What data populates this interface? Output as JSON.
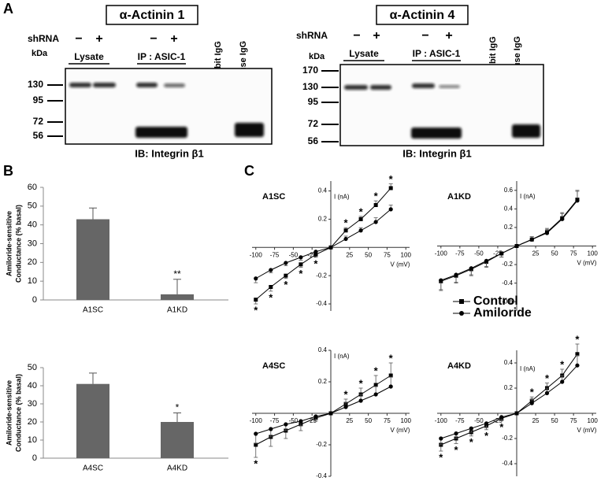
{
  "panel_labels": [
    "A",
    "B",
    "C"
  ],
  "blots": [
    {
      "title": "α-Actinin 1",
      "shrna_label": "shRNA",
      "lane_signs": [
        "−",
        "+",
        "−",
        "+"
      ],
      "kda_label": "kDa",
      "groups": [
        "Lysate",
        "IP : ASIC-1"
      ],
      "controls": [
        "Rabbit IgG",
        "Mouse IgG"
      ],
      "markers": [
        130,
        95,
        72,
        56
      ],
      "ib_label": "IB: Integrin β1"
    },
    {
      "title": "α-Actinin 4",
      "shrna_label": "shRNA",
      "lane_signs": [
        "−",
        "+",
        "−",
        "+"
      ],
      "kda_label": "kDa",
      "groups": [
        "Lysate",
        "IP : ASIC-1"
      ],
      "controls": [
        "Rabbit IgG",
        "Mouse IgG"
      ],
      "markers": [
        170,
        130,
        95,
        72,
        56
      ],
      "ib_label": "IB: Integrin β1"
    }
  ],
  "chart_data": [
    {
      "type": "bar",
      "ylabel": [
        "Amiloride-sensitive",
        "Conductance (% basal)"
      ],
      "categories": [
        "A1SC",
        "A1KD"
      ],
      "values": [
        43,
        3
      ],
      "errors": [
        6,
        8
      ],
      "significance": [
        null,
        "**"
      ],
      "color": "#666666",
      "ylim": [
        0,
        60
      ],
      "yticks": [
        0,
        10,
        20,
        30,
        40,
        50,
        60
      ]
    },
    {
      "type": "bar",
      "ylabel": [
        "Amiloride-sensitive",
        "Conductance (% basal)"
      ],
      "categories": [
        "A4SC",
        "A4KD"
      ],
      "values": [
        41,
        20
      ],
      "errors": [
        6,
        5
      ],
      "significance": [
        null,
        "*"
      ],
      "color": "#666666",
      "ylim": [
        0,
        50
      ],
      "yticks": [
        0,
        10,
        20,
        30,
        40,
        50
      ]
    },
    {
      "type": "line",
      "title": "A1SC",
      "xlabel": "V (mV)",
      "ylabel": "I (nA)",
      "x": [
        -100,
        -80,
        -60,
        -40,
        -20,
        0,
        20,
        40,
        60,
        80
      ],
      "xlim": [
        -105,
        105
      ],
      "xticks": [
        -100,
        -75,
        -50,
        -25,
        25,
        50,
        75,
        100
      ],
      "ylim": [
        -0.45,
        0.47
      ],
      "yticks": [
        -0.4,
        -0.2,
        0.2,
        0.4
      ],
      "series": [
        {
          "marker": "square",
          "color": "#000000",
          "values": [
            -0.37,
            -0.28,
            -0.2,
            -0.12,
            -0.05,
            0,
            0.12,
            0.2,
            0.3,
            0.42
          ],
          "errors": [
            0.03,
            0.03,
            0.02,
            0.02,
            0.02,
            0,
            0.02,
            0.02,
            0.03,
            0.03
          ]
        },
        {
          "marker": "circle",
          "color": "#000000",
          "values": [
            -0.22,
            -0.16,
            -0.11,
            -0.07,
            -0.03,
            0,
            0.06,
            0.12,
            0.18,
            0.27
          ],
          "errors": [
            0.03,
            0.02,
            0.02,
            0.02,
            0.01,
            0,
            0.02,
            0.02,
            0.03,
            0.03
          ]
        }
      ],
      "annotations": [
        {
          "text": "*",
          "x": -100
        },
        {
          "text": "*",
          "x": -80
        },
        {
          "text": "*",
          "x": -60
        },
        {
          "text": "*",
          "x": -40
        },
        {
          "text": "*",
          "x": -20
        },
        {
          "text": "*",
          "x": 20
        },
        {
          "text": "*",
          "x": 40
        },
        {
          "text": "*",
          "x": 60
        },
        {
          "text": "*",
          "x": 80
        }
      ]
    },
    {
      "type": "line",
      "title": "A1KD",
      "xlabel": "V (mV)",
      "ylabel": "I (nA)",
      "x": [
        -100,
        -80,
        -60,
        -40,
        -20,
        0,
        20,
        40,
        60,
        80
      ],
      "xlim": [
        -105,
        105
      ],
      "xticks": [
        -100,
        -75,
        -50,
        -25,
        25,
        50,
        75,
        100
      ],
      "ylim": [
        -0.7,
        0.7
      ],
      "yticks": [
        -0.6,
        -0.4,
        -0.2,
        0.2,
        0.4,
        0.6
      ],
      "legend": "lower right",
      "series": [
        {
          "name": "Control",
          "marker": "square",
          "color": "#000000",
          "values": [
            -0.38,
            -0.32,
            -0.25,
            -0.17,
            -0.08,
            0,
            0.07,
            0.15,
            0.3,
            0.5
          ],
          "errors": [
            0.1,
            0.08,
            0.07,
            0.06,
            0.04,
            0,
            0.03,
            0.04,
            0.06,
            0.1
          ]
        },
        {
          "name": "Amiloride",
          "marker": "circle",
          "color": "#000000",
          "values": [
            -0.37,
            -0.31,
            -0.24,
            -0.16,
            -0.08,
            0,
            0.07,
            0.14,
            0.29,
            0.49
          ],
          "errors": [
            0.1,
            0.08,
            0.07,
            0.06,
            0.04,
            0,
            0.03,
            0.04,
            0.06,
            0.1
          ]
        }
      ]
    },
    {
      "type": "line",
      "title": "A4SC",
      "xlabel": "V (mV)",
      "ylabel": "I (nA)",
      "x": [
        -100,
        -80,
        -60,
        -40,
        -20,
        0,
        20,
        40,
        60,
        80
      ],
      "xlim": [
        -105,
        105
      ],
      "xticks": [
        -100,
        -75,
        -50,
        -25,
        25,
        50,
        75,
        100
      ],
      "ylim": [
        -0.4,
        0.4
      ],
      "yticks": [
        -0.4,
        -0.2,
        0.2,
        0.4
      ],
      "series": [
        {
          "marker": "square",
          "color": "#000000",
          "values": [
            -0.2,
            -0.15,
            -0.11,
            -0.07,
            -0.03,
            0,
            0.06,
            0.12,
            0.18,
            0.24
          ],
          "errors": [
            0.08,
            0.06,
            0.05,
            0.04,
            0.02,
            0,
            0.03,
            0.04,
            0.06,
            0.08
          ]
        },
        {
          "marker": "circle",
          "color": "#000000",
          "values": [
            -0.13,
            -0.1,
            -0.07,
            -0.05,
            -0.02,
            0,
            0.04,
            0.08,
            0.12,
            0.17
          ],
          "errors": [
            0.06,
            0.05,
            0.04,
            0.03,
            0.02,
            0,
            0.03,
            0.04,
            0.05,
            0.06
          ]
        }
      ],
      "annotations": [
        {
          "text": "*",
          "x": -100
        },
        {
          "text": "*",
          "x": 20
        },
        {
          "text": "*",
          "x": 40
        },
        {
          "text": "*",
          "x": 60
        },
        {
          "text": "*",
          "x": 80
        }
      ]
    },
    {
      "type": "line",
      "title": "A4KD",
      "xlabel": "V (mV)",
      "ylabel": "I (nA)",
      "x": [
        -100,
        -80,
        -60,
        -40,
        -20,
        0,
        20,
        40,
        60,
        80
      ],
      "xlim": [
        -105,
        105
      ],
      "xticks": [
        -100,
        -75,
        -50,
        -25,
        25,
        50,
        75,
        100
      ],
      "ylim": [
        -0.5,
        0.5
      ],
      "yticks": [
        -0.4,
        -0.2,
        0.2,
        0.4
      ],
      "series": [
        {
          "marker": "square",
          "color": "#000000",
          "values": [
            -0.25,
            -0.2,
            -0.15,
            -0.1,
            -0.04,
            0,
            0.1,
            0.2,
            0.3,
            0.47
          ],
          "errors": [
            0.05,
            0.04,
            0.03,
            0.03,
            0.02,
            0,
            0.03,
            0.04,
            0.05,
            0.08
          ]
        },
        {
          "marker": "circle",
          "color": "#000000",
          "values": [
            -0.2,
            -0.16,
            -0.12,
            -0.08,
            -0.03,
            0,
            0.08,
            0.16,
            0.25,
            0.38
          ],
          "errors": [
            0.05,
            0.04,
            0.03,
            0.03,
            0.02,
            0,
            0.03,
            0.04,
            0.05,
            0.08
          ]
        }
      ],
      "annotations": [
        {
          "text": "*",
          "x": -100
        },
        {
          "text": "*",
          "x": -80
        },
        {
          "text": "*",
          "x": -60
        },
        {
          "text": "*",
          "x": -40
        },
        {
          "text": "*",
          "x": -20
        },
        {
          "text": "*",
          "x": 20
        },
        {
          "text": "*",
          "x": 40
        },
        {
          "text": "*",
          "x": 60
        },
        {
          "text": "*",
          "x": 80
        }
      ]
    }
  ]
}
